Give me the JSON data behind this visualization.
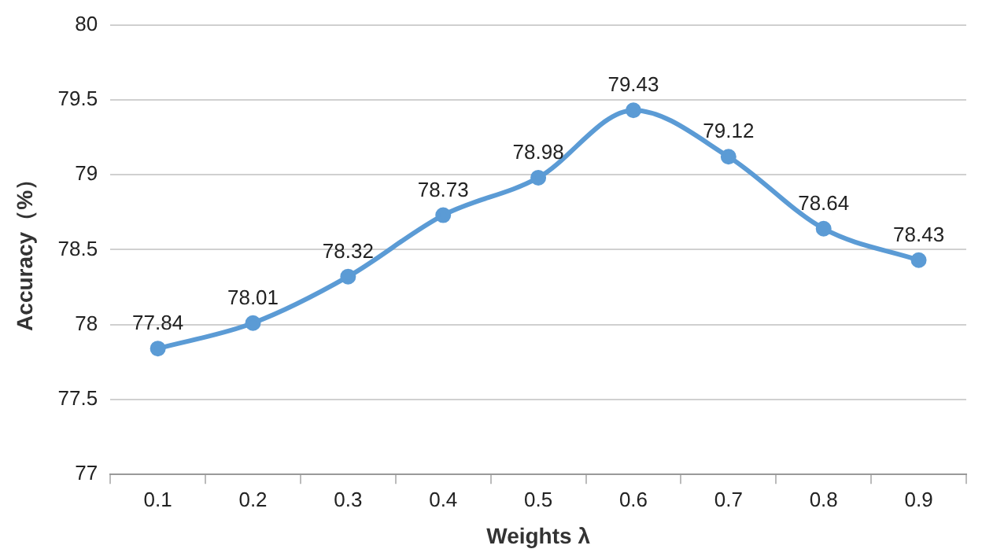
{
  "chart_data": {
    "type": "line",
    "xlabel": "Weights λ",
    "ylabel": "Accuracy（%）",
    "categories": [
      "0.1",
      "0.2",
      "0.3",
      "0.4",
      "0.5",
      "0.6",
      "0.7",
      "0.8",
      "0.9"
    ],
    "series": [
      {
        "color": "#5b9bd5",
        "values": [
          77.84,
          78.01,
          78.32,
          78.73,
          78.98,
          79.43,
          79.12,
          78.64,
          78.43
        ]
      }
    ],
    "ylim": [
      77,
      80
    ],
    "yticks": [
      77,
      77.5,
      78,
      78.5,
      79,
      79.5,
      80
    ],
    "grid": "y",
    "legend": false,
    "marker": "circle",
    "line_style": "solid",
    "data_labels": true
  }
}
